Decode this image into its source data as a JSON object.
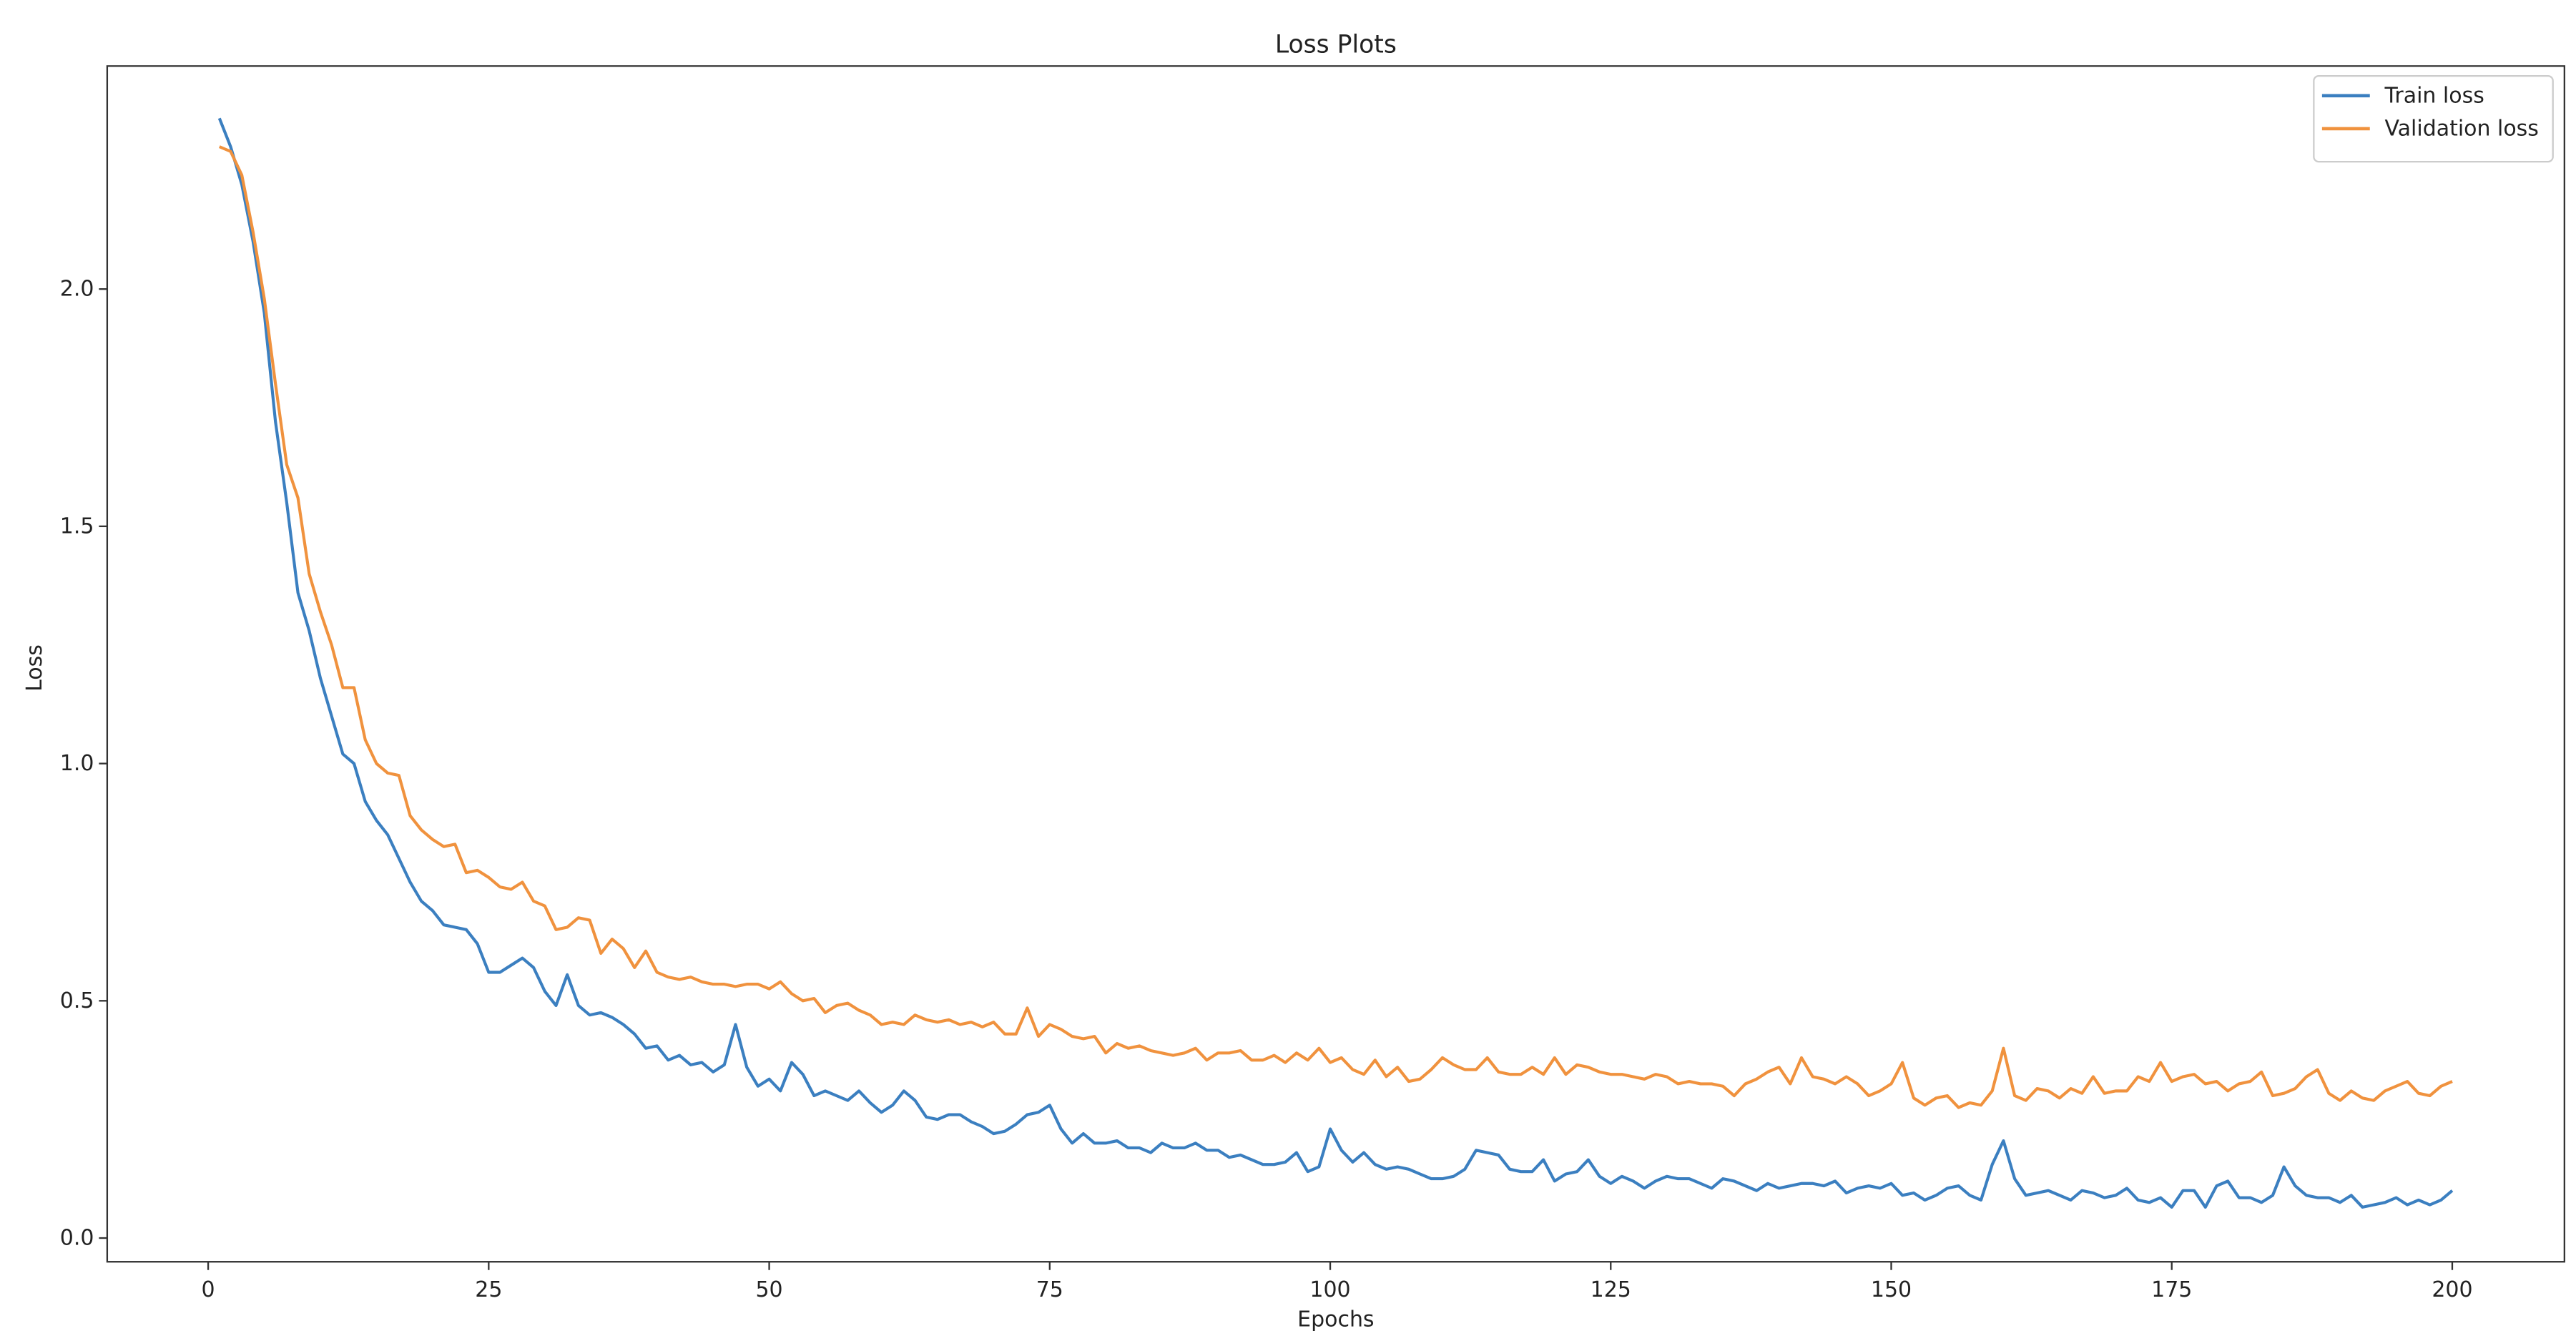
{
  "chart_data": {
    "type": "line",
    "title": "Loss Plots",
    "xlabel": "Epochs",
    "ylabel": "Loss",
    "x": [
      1,
      2,
      3,
      4,
      5,
      6,
      7,
      8,
      9,
      10,
      11,
      12,
      13,
      14,
      15,
      16,
      17,
      18,
      19,
      20,
      21,
      22,
      23,
      24,
      25,
      26,
      27,
      28,
      29,
      30,
      31,
      32,
      33,
      34,
      35,
      36,
      37,
      38,
      39,
      40,
      41,
      42,
      43,
      44,
      45,
      46,
      47,
      48,
      49,
      50,
      51,
      52,
      53,
      54,
      55,
      56,
      57,
      58,
      59,
      60,
      61,
      62,
      63,
      64,
      65,
      66,
      67,
      68,
      69,
      70,
      71,
      72,
      73,
      74,
      75,
      76,
      77,
      78,
      79,
      80,
      81,
      82,
      83,
      84,
      85,
      86,
      87,
      88,
      89,
      90,
      91,
      92,
      93,
      94,
      95,
      96,
      97,
      98,
      99,
      100,
      101,
      102,
      103,
      104,
      105,
      106,
      107,
      108,
      109,
      110,
      111,
      112,
      113,
      114,
      115,
      116,
      117,
      118,
      119,
      120,
      121,
      122,
      123,
      124,
      125,
      126,
      127,
      128,
      129,
      130,
      131,
      132,
      133,
      134,
      135,
      136,
      137,
      138,
      139,
      140,
      141,
      142,
      143,
      144,
      145,
      146,
      147,
      148,
      149,
      150,
      151,
      152,
      153,
      154,
      155,
      156,
      157,
      158,
      159,
      160,
      161,
      162,
      163,
      164,
      165,
      166,
      167,
      168,
      169,
      170,
      171,
      172,
      173,
      174,
      175,
      176,
      177,
      178,
      179,
      180,
      181,
      182,
      183,
      184,
      185,
      186,
      187,
      188,
      189,
      190,
      191,
      192,
      193,
      194,
      195,
      196,
      197,
      198,
      199,
      200
    ],
    "series": [
      {
        "name": "Train loss",
        "color": "#3b7fc0",
        "values": [
          2.36,
          2.3,
          2.22,
          2.1,
          1.95,
          1.72,
          1.55,
          1.36,
          1.28,
          1.18,
          1.1,
          1.02,
          1.0,
          0.92,
          0.88,
          0.85,
          0.8,
          0.75,
          0.71,
          0.69,
          0.66,
          0.655,
          0.65,
          0.62,
          0.56,
          0.56,
          0.575,
          0.59,
          0.57,
          0.52,
          0.49,
          0.555,
          0.49,
          0.47,
          0.475,
          0.465,
          0.45,
          0.43,
          0.4,
          0.405,
          0.375,
          0.385,
          0.365,
          0.37,
          0.35,
          0.365,
          0.45,
          0.36,
          0.32,
          0.335,
          0.31,
          0.37,
          0.345,
          0.3,
          0.31,
          0.3,
          0.29,
          0.31,
          0.285,
          0.265,
          0.28,
          0.31,
          0.29,
          0.255,
          0.25,
          0.26,
          0.26,
          0.245,
          0.235,
          0.22,
          0.225,
          0.24,
          0.26,
          0.265,
          0.28,
          0.23,
          0.2,
          0.22,
          0.2,
          0.2,
          0.205,
          0.19,
          0.19,
          0.18,
          0.2,
          0.19,
          0.19,
          0.2,
          0.185,
          0.185,
          0.17,
          0.175,
          0.165,
          0.155,
          0.155,
          0.16,
          0.18,
          0.14,
          0.15,
          0.23,
          0.185,
          0.16,
          0.18,
          0.155,
          0.145,
          0.15,
          0.145,
          0.135,
          0.125,
          0.125,
          0.13,
          0.145,
          0.185,
          0.18,
          0.175,
          0.145,
          0.14,
          0.14,
          0.165,
          0.12,
          0.135,
          0.14,
          0.165,
          0.13,
          0.115,
          0.13,
          0.12,
          0.105,
          0.12,
          0.13,
          0.125,
          0.125,
          0.115,
          0.105,
          0.125,
          0.12,
          0.11,
          0.1,
          0.115,
          0.105,
          0.11,
          0.115,
          0.115,
          0.11,
          0.12,
          0.095,
          0.105,
          0.11,
          0.105,
          0.115,
          0.09,
          0.095,
          0.08,
          0.09,
          0.105,
          0.11,
          0.09,
          0.08,
          0.155,
          0.205,
          0.125,
          0.09,
          0.095,
          0.1,
          0.09,
          0.08,
          0.1,
          0.095,
          0.085,
          0.09,
          0.105,
          0.08,
          0.075,
          0.085,
          0.065,
          0.1,
          0.1,
          0.065,
          0.11,
          0.12,
          0.085,
          0.085,
          0.075,
          0.09,
          0.15,
          0.11,
          0.09,
          0.085,
          0.085,
          0.075,
          0.09,
          0.065,
          0.07,
          0.075,
          0.085,
          0.07,
          0.08,
          0.07,
          0.08,
          0.1
        ]
      },
      {
        "name": "Validation loss",
        "color": "#f0923e",
        "values": [
          2.3,
          2.29,
          2.24,
          2.12,
          1.98,
          1.8,
          1.63,
          1.56,
          1.4,
          1.32,
          1.25,
          1.16,
          1.16,
          1.05,
          1.0,
          0.98,
          0.975,
          0.89,
          0.86,
          0.84,
          0.825,
          0.83,
          0.77,
          0.775,
          0.76,
          0.74,
          0.735,
          0.75,
          0.71,
          0.7,
          0.65,
          0.655,
          0.675,
          0.67,
          0.6,
          0.63,
          0.61,
          0.57,
          0.605,
          0.56,
          0.55,
          0.545,
          0.55,
          0.54,
          0.535,
          0.535,
          0.53,
          0.535,
          0.535,
          0.525,
          0.54,
          0.515,
          0.5,
          0.505,
          0.475,
          0.49,
          0.495,
          0.48,
          0.47,
          0.45,
          0.455,
          0.45,
          0.47,
          0.46,
          0.455,
          0.46,
          0.45,
          0.455,
          0.445,
          0.455,
          0.43,
          0.43,
          0.485,
          0.425,
          0.45,
          0.44,
          0.425,
          0.42,
          0.425,
          0.39,
          0.41,
          0.4,
          0.405,
          0.395,
          0.39,
          0.385,
          0.39,
          0.4,
          0.375,
          0.39,
          0.39,
          0.395,
          0.375,
          0.375,
          0.385,
          0.37,
          0.39,
          0.375,
          0.4,
          0.37,
          0.38,
          0.355,
          0.345,
          0.375,
          0.34,
          0.36,
          0.33,
          0.335,
          0.355,
          0.38,
          0.365,
          0.355,
          0.355,
          0.38,
          0.35,
          0.345,
          0.345,
          0.36,
          0.345,
          0.38,
          0.345,
          0.365,
          0.36,
          0.35,
          0.345,
          0.345,
          0.34,
          0.335,
          0.345,
          0.34,
          0.325,
          0.33,
          0.325,
          0.325,
          0.32,
          0.3,
          0.325,
          0.335,
          0.35,
          0.36,
          0.325,
          0.38,
          0.34,
          0.335,
          0.325,
          0.34,
          0.325,
          0.3,
          0.31,
          0.325,
          0.37,
          0.295,
          0.28,
          0.295,
          0.3,
          0.275,
          0.285,
          0.28,
          0.31,
          0.4,
          0.3,
          0.29,
          0.315,
          0.31,
          0.295,
          0.315,
          0.305,
          0.34,
          0.305,
          0.31,
          0.31,
          0.34,
          0.33,
          0.37,
          0.33,
          0.34,
          0.345,
          0.325,
          0.33,
          0.31,
          0.325,
          0.33,
          0.35,
          0.3,
          0.305,
          0.315,
          0.34,
          0.355,
          0.305,
          0.29,
          0.31,
          0.295,
          0.29,
          0.31,
          0.32,
          0.33,
          0.305,
          0.3,
          0.32,
          0.33
        ]
      }
    ],
    "xlim": [
      -9,
      210
    ],
    "xticks": [
      0,
      25,
      50,
      75,
      100,
      125,
      150,
      175,
      200
    ],
    "ylim": [
      -0.05,
      2.47
    ],
    "yticks": [
      {
        "value": 0,
        "label": "0.0"
      },
      0.5,
      {
        "value": 1,
        "label": "1.0"
      },
      1.5,
      {
        "value": 2,
        "label": "2.0"
      }
    ],
    "grid": false,
    "legend": "upper right"
  }
}
